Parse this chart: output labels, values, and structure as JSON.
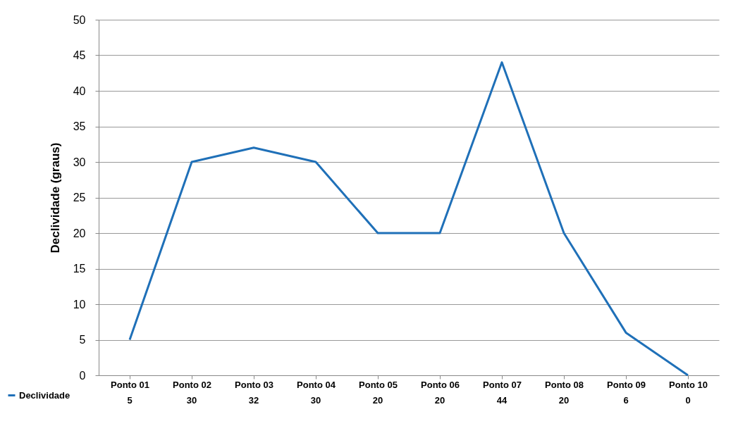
{
  "chart_data": {
    "type": "line",
    "ylabel": "Declividade (graus)",
    "categories": [
      "Ponto 01",
      "Ponto 02",
      "Ponto 03",
      "Ponto 04",
      "Ponto 05",
      "Ponto 06",
      "Ponto 07",
      "Ponto 08",
      "Ponto 09",
      "Ponto 10"
    ],
    "series": [
      {
        "name": "Declividade",
        "color": "#1f70b8",
        "values": [
          5,
          30,
          32,
          30,
          20,
          20,
          44,
          20,
          6,
          0
        ]
      }
    ],
    "ylim": [
      0,
      50
    ],
    "yticks": [
      0,
      5,
      10,
      15,
      20,
      25,
      30,
      35,
      40,
      45,
      50
    ],
    "grid": "y",
    "legend": "bottom left",
    "data_labels": true,
    "marker": "none",
    "line_style": "solid"
  }
}
